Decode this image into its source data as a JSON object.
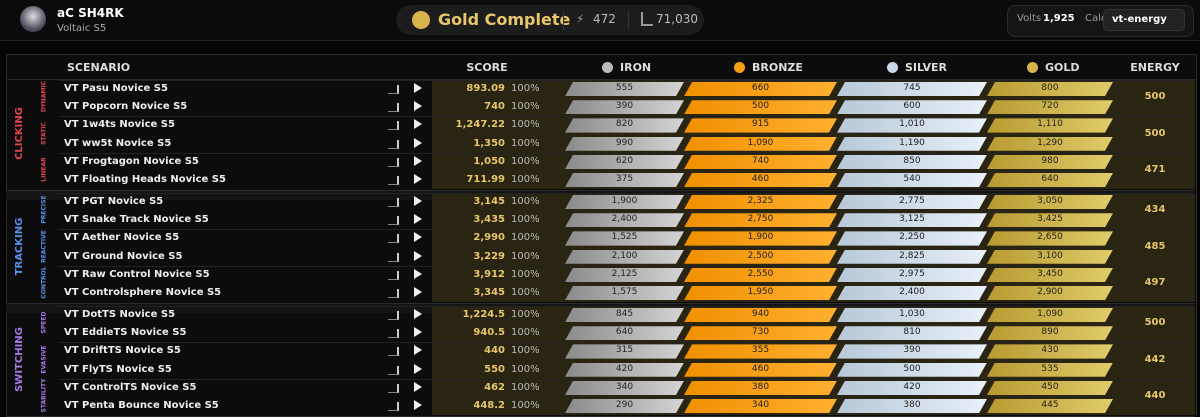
{
  "header": {
    "user": "aC SH4RK",
    "benchmark": "Voltaic S5",
    "status": "Gold Complete",
    "energy_total": "472",
    "score_total": "71,030",
    "volts_label": "Volts",
    "volts": "1,925",
    "calc_label": "Calc",
    "calc": "vt-energy"
  },
  "table": {
    "columns": [
      "SCENARIO",
      "SCORE",
      "IRON",
      "BRONZE",
      "SILVER",
      "GOLD",
      "ENERGY"
    ],
    "categories": [
      {
        "name": "CLICKING",
        "color": "#e0454f",
        "subcategories": [
          {
            "name": "DYNAMIC",
            "energy": "500",
            "scenarios": [
              {
                "name": "VT Pasu Novice S5",
                "score": "893.09",
                "percent": "100%",
                "thresholds": [
                  "555",
                  "660",
                  "745",
                  "800"
                ]
              },
              {
                "name": "VT Popcorn Novice S5",
                "score": "740",
                "percent": "100%",
                "thresholds": [
                  "390",
                  "500",
                  "600",
                  "720"
                ]
              }
            ]
          },
          {
            "name": "STATIC",
            "energy": "500",
            "scenarios": [
              {
                "name": "VT 1w4ts Novice S5",
                "score": "1,247.22",
                "percent": "100%",
                "thresholds": [
                  "820",
                  "915",
                  "1,010",
                  "1,110"
                ]
              },
              {
                "name": "VT ww5t Novice S5",
                "score": "1,350",
                "percent": "100%",
                "thresholds": [
                  "990",
                  "1,090",
                  "1,190",
                  "1,290"
                ]
              }
            ]
          },
          {
            "name": "LINEAR",
            "energy": "471",
            "scenarios": [
              {
                "name": "VT Frogtagon Novice S5",
                "score": "1,050",
                "percent": "100%",
                "thresholds": [
                  "620",
                  "740",
                  "850",
                  "980"
                ]
              },
              {
                "name": "VT Floating Heads Novice S5",
                "score": "711.99",
                "percent": "100%",
                "thresholds": [
                  "375",
                  "460",
                  "540",
                  "640"
                ]
              }
            ]
          }
        ]
      },
      {
        "name": "TRACKING",
        "color": "#5b8ee8",
        "subcategories": [
          {
            "name": "PRECISE",
            "energy": "434",
            "scenarios": [
              {
                "name": "VT PGT Novice S5",
                "score": "3,145",
                "percent": "100%",
                "thresholds": [
                  "1,900",
                  "2,325",
                  "2,775",
                  "3,050"
                ]
              },
              {
                "name": "VT Snake Track Novice S5",
                "score": "3,435",
                "percent": "100%",
                "thresholds": [
                  "2,400",
                  "2,750",
                  "3,125",
                  "3,425"
                ]
              }
            ]
          },
          {
            "name": "REACTIVE",
            "energy": "485",
            "scenarios": [
              {
                "name": "VT Aether Novice S5",
                "score": "2,990",
                "percent": "100%",
                "thresholds": [
                  "1,525",
                  "1,900",
                  "2,250",
                  "2,650"
                ]
              },
              {
                "name": "VT Ground Novice S5",
                "score": "3,229",
                "percent": "100%",
                "thresholds": [
                  "2,100",
                  "2,500",
                  "2,825",
                  "3,100"
                ]
              }
            ]
          },
          {
            "name": "CONTROL",
            "energy": "497",
            "scenarios": [
              {
                "name": "VT Raw Control Novice S5",
                "score": "3,912",
                "percent": "100%",
                "thresholds": [
                  "2,125",
                  "2,550",
                  "2,975",
                  "3,450"
                ]
              },
              {
                "name": "VT Controlsphere Novice S5",
                "score": "3,345",
                "percent": "100%",
                "thresholds": [
                  "1,575",
                  "1,950",
                  "2,400",
                  "2,900"
                ]
              }
            ]
          }
        ]
      },
      {
        "name": "SWITCHING",
        "color": "#a678e8",
        "subcategories": [
          {
            "name": "SPEED",
            "energy": "500",
            "scenarios": [
              {
                "name": "VT DotTS Novice S5",
                "score": "1,224.5",
                "percent": "100%",
                "thresholds": [
                  "845",
                  "940",
                  "1,030",
                  "1,090"
                ]
              },
              {
                "name": "VT EddieTS Novice S5",
                "score": "940.5",
                "percent": "100%",
                "thresholds": [
                  "640",
                  "730",
                  "810",
                  "890"
                ]
              }
            ]
          },
          {
            "name": "EVASIVE",
            "energy": "442",
            "scenarios": [
              {
                "name": "VT DriftTS Novice S5",
                "score": "440",
                "percent": "100%",
                "thresholds": [
                  "315",
                  "355",
                  "390",
                  "430"
                ]
              },
              {
                "name": "VT FlyTS Novice S5",
                "score": "550",
                "percent": "100%",
                "thresholds": [
                  "420",
                  "460",
                  "500",
                  "535"
                ]
              }
            ]
          },
          {
            "name": "STABILITY",
            "energy": "440",
            "scenarios": [
              {
                "name": "VT ControlTS Novice S5",
                "score": "462",
                "percent": "100%",
                "thresholds": [
                  "340",
                  "380",
                  "420",
                  "450"
                ]
              },
              {
                "name": "VT Penta Bounce Novice S5",
                "score": "448.2",
                "percent": "100%",
                "thresholds": [
                  "290",
                  "340",
                  "380",
                  "445"
                ]
              }
            ]
          }
        ]
      }
    ]
  }
}
